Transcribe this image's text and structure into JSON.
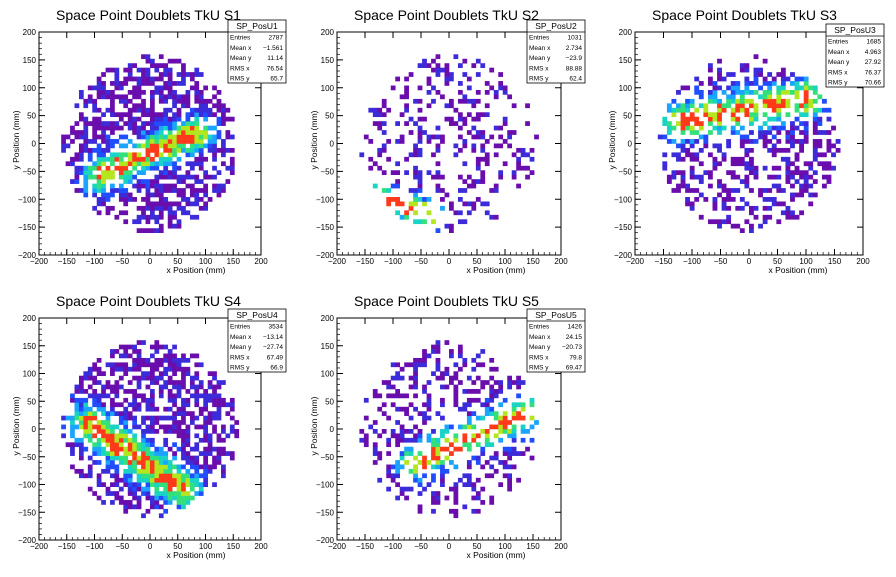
{
  "chart_data": [
    {
      "type": "heatmap",
      "title": "Space Point Doublets TkU S1",
      "xlabel": "x Position (mm)",
      "ylabel": "y Position (mm)",
      "xlim": [
        -200,
        200
      ],
      "ylim": [
        -200,
        200
      ],
      "xticks": [
        -200,
        -150,
        -100,
        -50,
        0,
        50,
        100,
        150,
        200
      ],
      "yticks": [
        -200,
        -150,
        -100,
        -50,
        0,
        50,
        100,
        150,
        200
      ],
      "stats": {
        "name": "SP_PosU1",
        "rows": [
          {
            "label": "Entries",
            "value": "2787"
          },
          {
            "label": "Mean x",
            "value": "−1.561"
          },
          {
            "label": "Mean y",
            "value": "11.14"
          },
          {
            "label": "RMS x",
            "value": "76.54"
          },
          {
            "label": "RMS y",
            "value": "65.7"
          }
        ]
      },
      "pattern": {
        "density": 0.8,
        "band": [
          -90,
          -55,
          85,
          20
        ],
        "band_width": 22,
        "spread": 140
      }
    },
    {
      "type": "heatmap",
      "title": "Space Point Doublets TkU S2",
      "xlabel": "x Position (mm)",
      "ylabel": "y Position (mm)",
      "xlim": [
        -200,
        200
      ],
      "ylim": [
        -200,
        200
      ],
      "xticks": [
        -200,
        -150,
        -100,
        -50,
        0,
        50,
        100,
        150,
        200
      ],
      "yticks": [
        -200,
        -150,
        -100,
        -50,
        0,
        50,
        100,
        150,
        200
      ],
      "stats": {
        "name": "SP_PosU2",
        "rows": [
          {
            "label": "Entries",
            "value": "1031"
          },
          {
            "label": "Mean x",
            "value": "2.734"
          },
          {
            "label": "Mean y",
            "value": "−23.9"
          },
          {
            "label": "RMS x",
            "value": "88.88"
          },
          {
            "label": "RMS y",
            "value": "62.4"
          }
        ]
      },
      "pattern": {
        "density": 0.42,
        "band": [
          -120,
          -95,
          -30,
          -130
        ],
        "band_width": 18,
        "spread": 150
      }
    },
    {
      "type": "heatmap",
      "title": "Space Point Doublets TkU S3",
      "xlabel": "x Position (mm)",
      "ylabel": "y Position (mm)",
      "xlim": [
        -200,
        200
      ],
      "ylim": [
        -200,
        200
      ],
      "xticks": [
        -200,
        -150,
        -100,
        -50,
        0,
        50,
        100,
        150,
        200
      ],
      "yticks": [
        -200,
        -150,
        -100,
        -50,
        0,
        50,
        100,
        150,
        200
      ],
      "stats": {
        "name": "SP_PosU3",
        "rows": [
          {
            "label": "Entries",
            "value": "1685"
          },
          {
            "label": "Mean x",
            "value": "4.963"
          },
          {
            "label": "Mean y",
            "value": "27.92"
          },
          {
            "label": "RMS x",
            "value": "76.37"
          },
          {
            "label": "RMS y",
            "value": "70.66"
          }
        ]
      },
      "pattern": {
        "density": 0.62,
        "band": [
          -120,
          40,
          100,
          80
        ],
        "band_width": 25,
        "spread": 150
      }
    },
    {
      "type": "heatmap",
      "title": "Space Point Doublets TkU S4",
      "xlabel": "x Position (mm)",
      "ylabel": "y Position (mm)",
      "xlim": [
        -200,
        200
      ],
      "ylim": [
        -200,
        200
      ],
      "xticks": [
        -200,
        -150,
        -100,
        -50,
        0,
        50,
        100,
        150,
        200
      ],
      "yticks": [
        -200,
        -150,
        -100,
        -50,
        0,
        50,
        100,
        150,
        200
      ],
      "stats": {
        "name": "SP_PosU4",
        "rows": [
          {
            "label": "Entries",
            "value": "3534"
          },
          {
            "label": "Mean x",
            "value": "−13.14"
          },
          {
            "label": "Mean y",
            "value": "−27.74"
          },
          {
            "label": "RMS x",
            "value": "67.49"
          },
          {
            "label": "RMS y",
            "value": "66.9"
          }
        ]
      },
      "pattern": {
        "density": 0.86,
        "band": [
          -110,
          10,
          60,
          -110
        ],
        "band_width": 24,
        "spread": 140
      }
    },
    {
      "type": "heatmap",
      "title": "Space Point Doublets TkU S5",
      "xlabel": "x Position (mm)",
      "ylabel": "y Position (mm)",
      "xlim": [
        -200,
        200
      ],
      "ylim": [
        -200,
        200
      ],
      "xticks": [
        -200,
        -150,
        -100,
        -50,
        0,
        50,
        100,
        150,
        200
      ],
      "yticks": [
        -200,
        -150,
        -100,
        -50,
        0,
        50,
        100,
        150,
        200
      ],
      "stats": {
        "name": "SP_PosU5",
        "rows": [
          {
            "label": "Entries",
            "value": "1426"
          },
          {
            "label": "Mean x",
            "value": "24.15"
          },
          {
            "label": "Mean y",
            "value": "−20.73"
          },
          {
            "label": "RMS x",
            "value": "79.8"
          },
          {
            "label": "RMS y",
            "value": "69.47"
          }
        ]
      },
      "pattern": {
        "density": 0.5,
        "band": [
          -60,
          -60,
          140,
          30
        ],
        "band_width": 22,
        "spread": 150
      }
    }
  ],
  "palette": [
    "#6a0dad",
    "#3b2bd9",
    "#1f4dff",
    "#1aa3ff",
    "#19d3c5",
    "#33e07a",
    "#b4e61e",
    "#ff3a1a"
  ]
}
